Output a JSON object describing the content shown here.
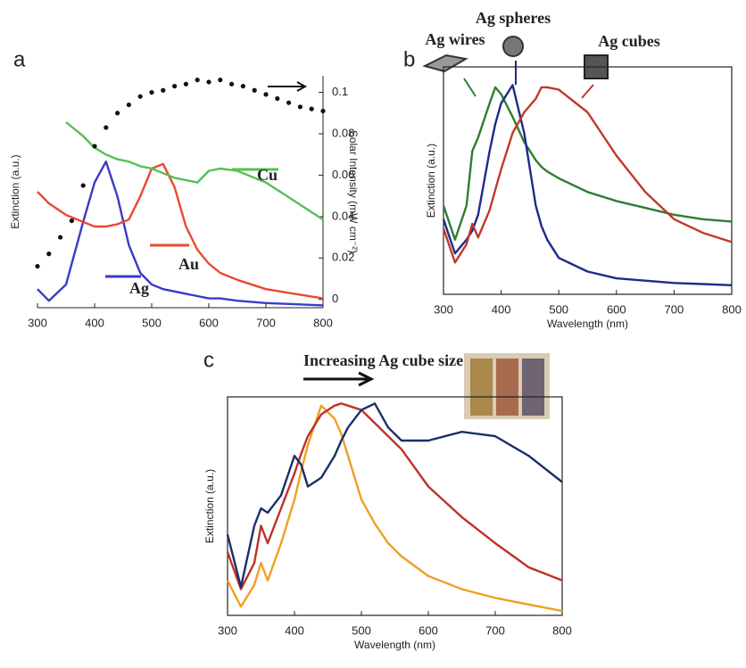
{
  "chart_data": [
    {
      "type": "line",
      "panel_label": "a",
      "ylabel": "Extinction (a.u.)",
      "y2label": "Solar Intensity (mW cm⁻²)",
      "x": [
        300,
        320,
        350,
        380,
        400,
        420,
        440,
        460,
        480,
        500,
        520,
        540,
        560,
        580,
        600,
        620,
        650,
        700,
        750,
        800
      ],
      "xlim": [
        300,
        800
      ],
      "xticks": [
        300,
        400,
        500,
        600,
        700,
        800
      ],
      "ylim": [
        0,
        1
      ],
      "y2lim": [
        -0.004,
        0.108
      ],
      "y2ticks": [
        0,
        0.02,
        0.04,
        0.06,
        0.08,
        0.1
      ],
      "series": [
        {
          "name": "Ag",
          "color": "#3a3ac8",
          "values": [
            0.08,
            0.03,
            0.1,
            0.37,
            0.54,
            0.63,
            0.48,
            0.27,
            0.15,
            0.1,
            0.08,
            0.07,
            0.06,
            0.05,
            0.04,
            0.04,
            0.03,
            0.02,
            0.015,
            0.01
          ]
        },
        {
          "name": "Au",
          "color": "#e84a2e",
          "values": [
            0.5,
            0.45,
            0.4,
            0.37,
            0.35,
            0.35,
            0.36,
            0.38,
            0.48,
            0.6,
            0.62,
            0.52,
            0.35,
            0.25,
            0.19,
            0.15,
            0.12,
            0.08,
            0.06,
            0.04
          ]
        },
        {
          "name": "Cu",
          "color": "#55c055",
          "values": [
            null,
            null,
            0.8,
            0.74,
            0.69,
            0.66,
            0.64,
            0.63,
            0.61,
            0.6,
            0.58,
            0.56,
            0.55,
            0.54,
            0.59,
            0.6,
            0.59,
            0.54,
            0.46,
            0.38
          ]
        },
        {
          "type": "scatter",
          "axis": "y2",
          "color": "#111111",
          "x": [
            300,
            320,
            340,
            360,
            380,
            400,
            420,
            440,
            460,
            480,
            500,
            520,
            540,
            560,
            580,
            600,
            620,
            640,
            660,
            680,
            700,
            720,
            740,
            760,
            780,
            800
          ],
          "values": [
            0.016,
            0.022,
            0.03,
            0.038,
            0.055,
            0.074,
            0.083,
            0.09,
            0.094,
            0.098,
            0.1,
            0.101,
            0.103,
            0.104,
            0.106,
            0.105,
            0.106,
            0.104,
            0.103,
            0.101,
            0.099,
            0.097,
            0.095,
            0.093,
            0.092,
            0.091
          ]
        }
      ]
    },
    {
      "type": "line",
      "panel_label": "b",
      "xlabel": "Wavelength (nm)",
      "ylabel": "Extinction (a.u.)",
      "x": [
        300,
        320,
        340,
        350,
        360,
        380,
        390,
        400,
        420,
        440,
        460,
        470,
        480,
        500,
        550,
        600,
        650,
        700,
        750,
        800
      ],
      "xlim": [
        300,
        800
      ],
      "xticks": [
        300,
        400,
        500,
        600,
        700,
        800
      ],
      "ylim": [
        0,
        1
      ],
      "series": [
        {
          "name": "Ag wires",
          "color": "#2e7d32",
          "values": [
            0.39,
            0.24,
            0.39,
            0.63,
            0.69,
            0.84,
            0.91,
            0.88,
            0.78,
            0.67,
            0.59,
            0.56,
            0.54,
            0.51,
            0.45,
            0.41,
            0.38,
            0.35,
            0.33,
            0.32
          ]
        },
        {
          "name": "Ag spheres",
          "color": "#1f2a8a",
          "values": [
            0.33,
            0.18,
            0.24,
            0.28,
            0.35,
            0.63,
            0.75,
            0.84,
            0.92,
            0.71,
            0.39,
            0.3,
            0.24,
            0.16,
            0.1,
            0.07,
            0.06,
            0.05,
            0.045,
            0.04
          ]
        },
        {
          "name": "Ag cubes",
          "color": "#c0392b",
          "values": [
            0.29,
            0.14,
            0.22,
            0.31,
            0.25,
            0.37,
            0.46,
            0.55,
            0.71,
            0.8,
            0.86,
            0.91,
            0.91,
            0.9,
            0.8,
            0.61,
            0.45,
            0.33,
            0.27,
            0.23
          ]
        }
      ]
    },
    {
      "type": "line",
      "panel_label": "c",
      "xlabel": "Wavelength (nm)",
      "ylabel": "Extinction (a.u.)",
      "annotation": "Increasing Ag cube size",
      "x": [
        300,
        320,
        340,
        350,
        360,
        380,
        400,
        410,
        420,
        440,
        460,
        470,
        480,
        500,
        520,
        540,
        560,
        600,
        650,
        700,
        750,
        800
      ],
      "xlim": [
        300,
        800
      ],
      "xticks": [
        300,
        400,
        500,
        600,
        700,
        800
      ],
      "ylim": [
        0,
        1
      ],
      "series": [
        {
          "color": "#f0a020",
          "values": [
            0.16,
            0.04,
            0.14,
            0.24,
            0.16,
            0.33,
            0.53,
            0.66,
            0.78,
            0.96,
            0.9,
            0.83,
            0.73,
            0.53,
            0.42,
            0.33,
            0.27,
            0.18,
            0.12,
            0.08,
            0.05,
            0.02
          ]
        },
        {
          "color": "#c0302a",
          "values": [
            0.29,
            0.12,
            0.24,
            0.41,
            0.33,
            0.49,
            0.65,
            0.74,
            0.82,
            0.92,
            0.96,
            0.97,
            0.96,
            0.94,
            0.88,
            0.82,
            0.76,
            0.59,
            0.45,
            0.33,
            0.22,
            0.16
          ]
        },
        {
          "color": "#1a2f6a",
          "values": [
            0.37,
            0.13,
            0.41,
            0.49,
            0.47,
            0.55,
            0.73,
            0.69,
            0.59,
            0.63,
            0.73,
            0.8,
            0.86,
            0.94,
            0.97,
            0.86,
            0.8,
            0.8,
            0.84,
            0.82,
            0.73,
            0.61
          ]
        }
      ]
    }
  ]
}
